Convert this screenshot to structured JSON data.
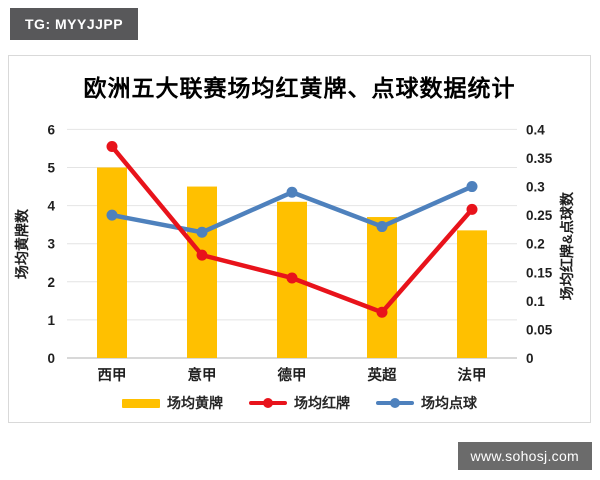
{
  "badge": {
    "text": "TG: MYYJJPP"
  },
  "watermark": {
    "text": "www.sohosj.com"
  },
  "chart_data": {
    "type": "bar+line combo",
    "title": "欧洲五大联赛场均红黄牌、点球数据统计",
    "categories": [
      "西甲",
      "意甲",
      "德甲",
      "英超",
      "法甲"
    ],
    "series": [
      {
        "name": "场均黄牌",
        "type": "bar",
        "axis": "left",
        "color": "#FFC000",
        "values": [
          5.0,
          4.5,
          4.1,
          3.7,
          3.35
        ]
      },
      {
        "name": "场均红牌",
        "type": "line",
        "axis": "right",
        "color": "#E8131B",
        "values": [
          0.37,
          0.18,
          0.14,
          0.08,
          0.26
        ]
      },
      {
        "name": "场均点球",
        "type": "line",
        "axis": "right",
        "color": "#4E81BD",
        "values": [
          0.25,
          0.22,
          0.29,
          0.23,
          0.3
        ]
      }
    ],
    "left_axis": {
      "label": "场均黄牌数",
      "min": 0,
      "max": 6,
      "step": 1,
      "ticks": [
        "0",
        "1",
        "2",
        "3",
        "4",
        "5",
        "6"
      ]
    },
    "right_axis": {
      "label": "场均红牌&点球数",
      "min": 0,
      "max": 0.4,
      "step": 0.05,
      "ticks": [
        "0",
        "0.05",
        "0.1",
        "0.15",
        "0.2",
        "0.25",
        "0.3",
        "0.35",
        "0.4"
      ]
    },
    "grid": true,
    "legend_position": "bottom",
    "colors": {
      "gridline": "#e4e4e4",
      "axis_line": "#c0c0c0",
      "tick_text": "#1f1f1f"
    }
  }
}
